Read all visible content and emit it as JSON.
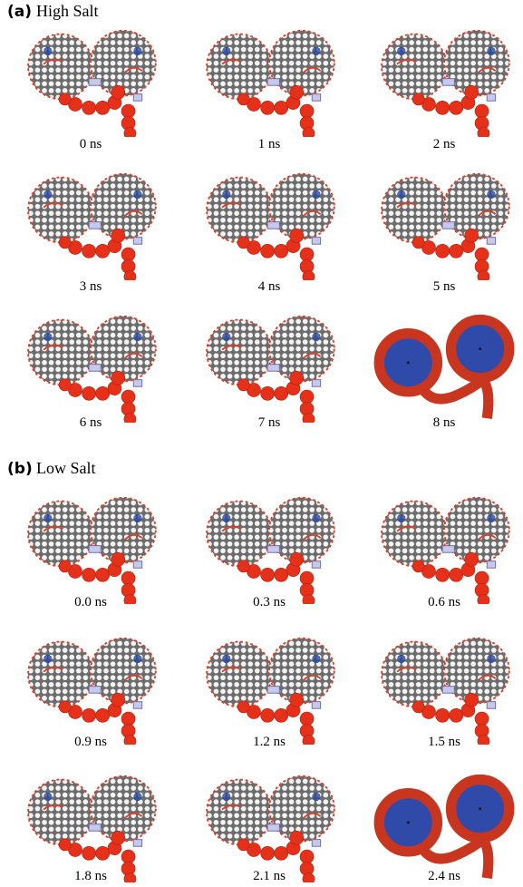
{
  "panels": [
    {
      "letter": "(a)",
      "title": "High Salt",
      "frames": [
        "0 ns",
        "1 ns",
        "2 ns",
        "3 ns",
        "4 ns",
        "5 ns",
        "6 ns",
        "7 ns",
        "8 ns"
      ]
    },
    {
      "letter": "(b)",
      "title": "Low Salt",
      "frames": [
        "0.0 ns",
        "0.3 ns",
        "0.6 ns",
        "0.9 ns",
        "1.2 ns",
        "1.5 ns",
        "1.8 ns",
        "2.1 ns",
        "2.4 ns"
      ]
    }
  ]
}
